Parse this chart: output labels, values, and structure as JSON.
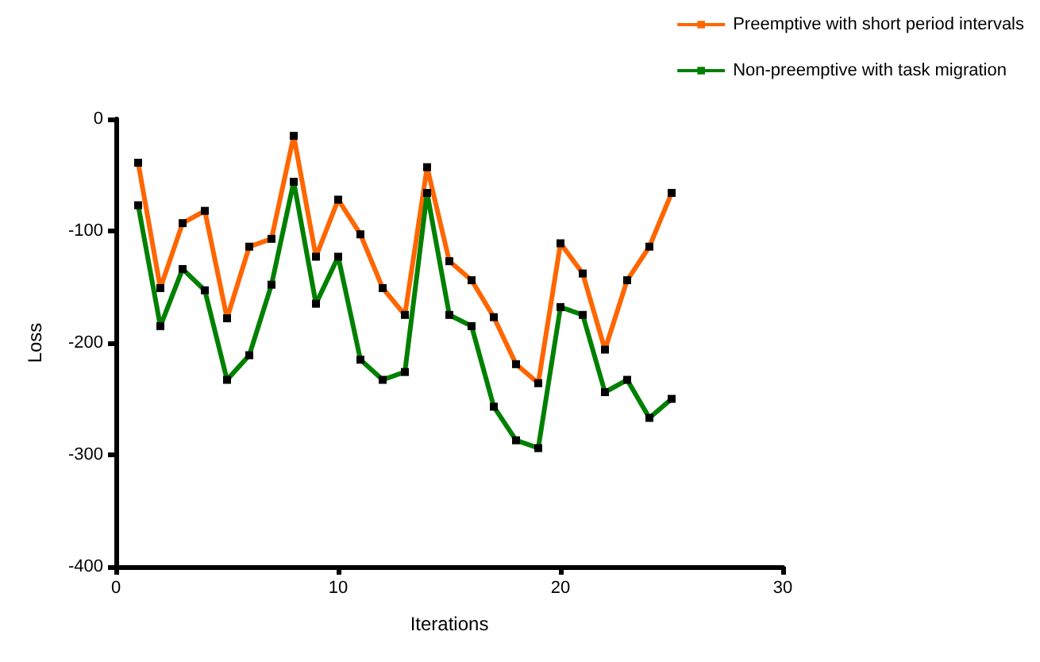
{
  "chart_data": {
    "type": "line",
    "xlabel": "Iterations",
    "ylabel": "Loss",
    "x": [
      1,
      2,
      3,
      4,
      5,
      6,
      7,
      8,
      9,
      10,
      11,
      12,
      13,
      14,
      15,
      16,
      17,
      18,
      19,
      20,
      21,
      22,
      23,
      24,
      25
    ],
    "series": [
      {
        "name": "Preemptive with short period intervals",
        "color": "#ff6600",
        "values": [
          -39,
          -151,
          -93,
          -82,
          -178,
          -114,
          -107,
          -15,
          -123,
          -72,
          -103,
          -151,
          -175,
          -43,
          -127,
          -144,
          -177,
          -219,
          -236,
          -111,
          -138,
          -206,
          -144,
          -114,
          -66
        ]
      },
      {
        "name": "Non-preemptive with task migration",
        "color": "#008000",
        "values": [
          -77,
          -185,
          -134,
          -153,
          -233,
          -211,
          -148,
          -56,
          -165,
          -123,
          -215,
          -233,
          -226,
          -66,
          -175,
          -185,
          -257,
          -287,
          -294,
          -168,
          -175,
          -244,
          -233,
          -267,
          -250
        ]
      }
    ],
    "xlim": [
      0,
      30
    ],
    "xticks": [
      0,
      10,
      20,
      30
    ],
    "ylim": [
      -400,
      0
    ],
    "yticks": [
      -400,
      -300,
      -200,
      -100,
      0
    ],
    "grid": false,
    "legend": "top right",
    "marker": "square",
    "line_style": "solid"
  }
}
